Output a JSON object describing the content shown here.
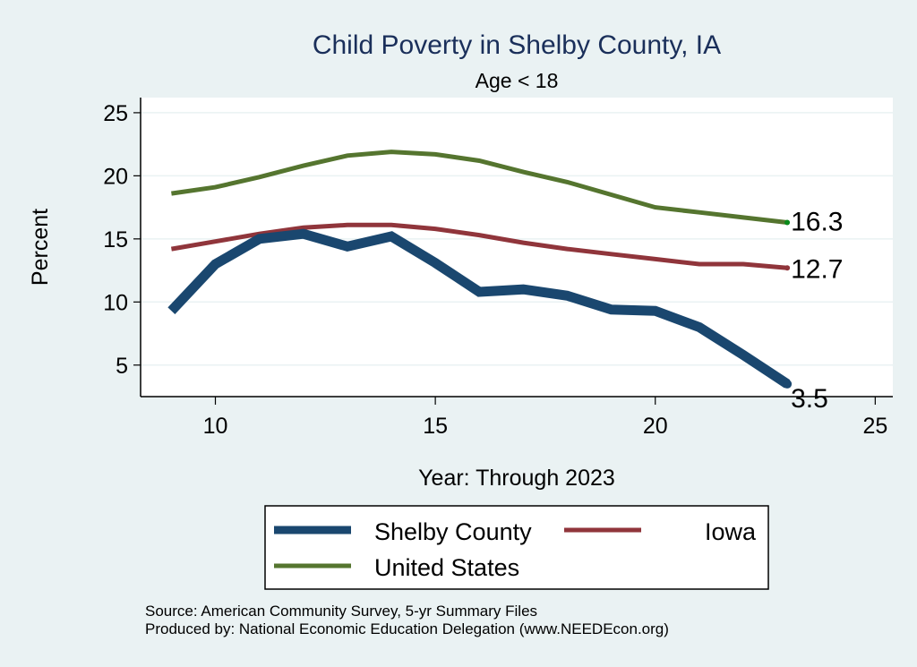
{
  "chart_data": {
    "type": "line",
    "title": "Child Poverty in Shelby County, IA",
    "subtitle": "Age < 18",
    "xlabel": "Year: Through 2023",
    "ylabel": "Percent",
    "x": [
      9,
      10,
      11,
      12,
      13,
      14,
      15,
      16,
      17,
      18,
      19,
      20,
      21,
      22,
      23
    ],
    "xlim": [
      8.3,
      25.4
    ],
    "ylim": [
      2.5,
      26.2
    ],
    "xticks": [
      10,
      15,
      20,
      25
    ],
    "yticks": [
      5,
      10,
      15,
      20,
      25
    ],
    "grid": true,
    "series": [
      {
        "name": "Shelby County",
        "color": "#1a476f",
        "values": [
          9.3,
          13.0,
          15.0,
          15.4,
          14.4,
          15.2,
          13.1,
          10.8,
          11.0,
          10.5,
          9.4,
          9.3,
          8.0,
          5.8,
          3.5
        ],
        "end_label": "3.5"
      },
      {
        "name": "Iowa",
        "color": "#90353b",
        "values": [
          14.2,
          14.8,
          15.4,
          15.9,
          16.1,
          16.1,
          15.8,
          15.3,
          14.7,
          14.2,
          13.8,
          13.4,
          13.0,
          13.0,
          12.7
        ],
        "end_label": "12.7"
      },
      {
        "name": "United States",
        "color": "#55752f",
        "values": [
          18.6,
          19.1,
          19.9,
          20.8,
          21.6,
          21.9,
          21.7,
          21.2,
          20.3,
          19.5,
          18.5,
          17.5,
          17.1,
          16.7,
          16.3
        ],
        "end_label": "16.3"
      }
    ],
    "legend": {
      "position": "bottom",
      "entries": [
        "Shelby County",
        "Iowa",
        "United States"
      ]
    },
    "notes": [
      "Source: American Community Survey, 5-yr Summary Files",
      "Produced by: National Economic Education Delegation (www.NEEDEcon.org)"
    ]
  }
}
